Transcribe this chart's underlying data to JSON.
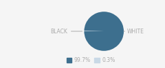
{
  "slices": [
    99.7,
    0.3
  ],
  "labels": [
    "BLACK",
    "WHITE"
  ],
  "colors": [
    "#3d6f8e",
    "#c9d9e6"
  ],
  "legend_labels": [
    "99.7%",
    "0.3%"
  ],
  "label_color": "#aaaaaa",
  "line_color": "#aaaaaa",
  "background_color": "#f5f5f5",
  "startangle": 180
}
